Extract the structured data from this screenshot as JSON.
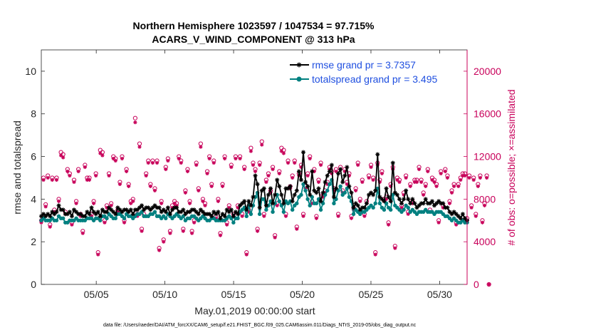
{
  "chart_data": {
    "type": "line",
    "title": "Northern Hemisphere 1023597 / 1047534 = 97.715%",
    "subtitle": "ACARS_V_WIND_COMPONENT @ 313 hPa",
    "xlabel": "May.01,2019 00:00:00 start",
    "ylabel": "rmse and totalspread",
    "ylabel_right": "# of obs: o=possible; ×=assimilated",
    "footnote": "data file: /Users/raeder/DAI/ATM_forcXX/CAM6_setup/f.e21.FHIST_BGC.f09_025.CAM6assim.011/Diags_NTrS_2019-05/obs_diag_output.nc",
    "xlim": [
      1,
      32
    ],
    "ylim": [
      0,
      11
    ],
    "ylim_right": [
      0,
      22000
    ],
    "x_ticks": [
      5,
      10,
      15,
      20,
      25,
      30
    ],
    "x_tick_labels": [
      "05/05",
      "05/10",
      "05/15",
      "05/20",
      "05/25",
      "05/30"
    ],
    "y_ticks": [
      0,
      2,
      4,
      6,
      8,
      10
    ],
    "y_tick_labels": [
      "0",
      "2",
      "4",
      "6",
      "8",
      "10"
    ],
    "y_right_ticks": [
      0,
      4000,
      8000,
      12000,
      16000,
      20000
    ],
    "y_right_tick_labels": [
      "0",
      "4000",
      "8000",
      "12000",
      "16000",
      "20000"
    ],
    "legend_position": "top-right",
    "colors": {
      "rmse": "#000000",
      "spread": "#008080",
      "obs": "#c8005a"
    },
    "series": [
      {
        "name": "rmse grand pr = 3.7357",
        "values": [
          3.2,
          3.3,
          3.2,
          3.3,
          3.2,
          3.4,
          3.3,
          3.4,
          3.7,
          3.5,
          3.5,
          3.3,
          3.3,
          3.4,
          3.2,
          3.5,
          3.4,
          3.3,
          3.3,
          3.2,
          3.2,
          3.4,
          3.3,
          3.6,
          3.4,
          3.3,
          3.4,
          3.2,
          3.5,
          3.4,
          3.4,
          3.6,
          3.5,
          3.4,
          3.3,
          3.6,
          3.5,
          3.4,
          3.5,
          3.5,
          3.4,
          3.5,
          3.3,
          3.5,
          3.5,
          3.6,
          3.7,
          3.5,
          3.6,
          3.6,
          3.5,
          3.6,
          3.7,
          3.6,
          3.6,
          3.4,
          3.5,
          3.4,
          3.6,
          3.3,
          3.5,
          3.6,
          3.6,
          3.4,
          3.4,
          3.5,
          3.3,
          3.4,
          3.4,
          3.5,
          3.5,
          3.4,
          3.3,
          3.5,
          3.4,
          3.3,
          3.3,
          3.3,
          3.2,
          3.4,
          3.3,
          3.4,
          3.1,
          3.3,
          3.2,
          3.5,
          3.4,
          3.5,
          3.2,
          3.4,
          3.3,
          3.7,
          3.8,
          3.9,
          3.5,
          3.9,
          3.7,
          4.1,
          5.1,
          4.7,
          3.6,
          4.4,
          4.5,
          3.7,
          4.2,
          4.5,
          3.8,
          4.2,
          4.9,
          4.6,
          4.2,
          3.8,
          4.5,
          4.5,
          4.6,
          3.9,
          4.2,
          4.4,
          5.3,
          4.9,
          6.2,
          4.8,
          4.6,
          4.2,
          5.3,
          4.4,
          4.3,
          4.5,
          3.9,
          4.3,
          4.8,
          5.1,
          5.3,
          5.6,
          4.1,
          4.5,
          5.2,
          5.4,
          4.8,
          5.1,
          5.5,
          4.6,
          4.3,
          3.6,
          3.8,
          3.7,
          3.5,
          3.6,
          3.6,
          3.8,
          4.2,
          4.3,
          4.2,
          4.4,
          6.1,
          4.1,
          4.0,
          3.9,
          4.5,
          4.1,
          3.9,
          5.7,
          4.3,
          4.2,
          4.0,
          3.8,
          4.0,
          4.4,
          4.0,
          3.8,
          4.0,
          3.8,
          3.6,
          3.7,
          3.8,
          3.8,
          4.0,
          3.8,
          3.8,
          3.9,
          3.7,
          3.8,
          3.9,
          3.8,
          3.8,
          3.6,
          3.6,
          3.4,
          3.3,
          3.4,
          3.3,
          3.2,
          3.1,
          3.3,
          3.1,
          3.0
        ]
      },
      {
        "name": "totalspread grand pr = 3.495",
        "values": [
          3.0,
          3.1,
          3.0,
          3.0,
          3.0,
          3.1,
          3.0,
          3.0,
          3.2,
          3.1,
          3.1,
          2.9,
          2.9,
          3.0,
          3.0,
          3.0,
          3.1,
          3.0,
          3.0,
          3.0,
          3.0,
          3.1,
          3.1,
          3.1,
          3.0,
          3.1,
          3.1,
          3.0,
          3.2,
          3.2,
          3.1,
          3.3,
          3.2,
          3.1,
          3.1,
          3.3,
          3.3,
          3.2,
          3.1,
          3.3,
          3.2,
          3.2,
          3.1,
          3.2,
          3.3,
          3.3,
          3.4,
          3.2,
          3.2,
          3.2,
          3.3,
          3.3,
          3.4,
          3.2,
          3.2,
          3.1,
          3.2,
          3.1,
          3.3,
          3.2,
          3.1,
          3.2,
          3.3,
          3.2,
          3.1,
          3.2,
          3.0,
          3.1,
          3.1,
          3.2,
          3.2,
          3.1,
          3.0,
          3.1,
          3.2,
          3.1,
          3.0,
          3.0,
          3.1,
          3.1,
          3.0,
          3.0,
          3.0,
          3.0,
          3.0,
          3.1,
          3.2,
          3.1,
          2.9,
          3.1,
          3.1,
          3.4,
          3.5,
          3.6,
          3.2,
          3.7,
          3.3,
          3.7,
          4.1,
          4.3,
          3.3,
          4.0,
          4.0,
          3.5,
          3.7,
          3.9,
          3.4,
          3.8,
          4.2,
          3.9,
          3.7,
          3.4,
          3.9,
          3.8,
          3.9,
          3.5,
          3.7,
          3.8,
          4.1,
          4.2,
          4.7,
          4.4,
          4.0,
          3.7,
          4.1,
          3.8,
          3.8,
          4.0,
          3.5,
          3.8,
          4.2,
          4.4,
          4.7,
          4.9,
          3.8,
          4.0,
          4.4,
          4.6,
          4.2,
          4.3,
          4.5,
          4.1,
          3.9,
          3.3,
          3.5,
          3.4,
          3.3,
          3.4,
          3.4,
          3.5,
          3.6,
          3.7,
          3.6,
          3.8,
          4.5,
          3.8,
          3.6,
          3.5,
          3.8,
          3.6,
          3.5,
          4.2,
          3.7,
          3.6,
          3.5,
          3.4,
          3.5,
          3.7,
          3.6,
          3.4,
          3.5,
          3.4,
          3.3,
          3.4,
          3.4,
          3.4,
          3.5,
          3.4,
          3.4,
          3.4,
          3.3,
          3.4,
          3.4,
          3.4,
          3.3,
          3.2,
          3.2,
          3.1,
          3.0,
          3.1,
          3.0,
          2.9,
          2.9,
          3.0,
          2.9,
          2.9
        ]
      },
      {
        "name": "# of obs possible (o)",
        "axis": "right",
        "values": [
          6000,
          10000,
          7500,
          10200,
          5600,
          10000,
          7000,
          10000,
          8000,
          12400,
          12200,
          6800,
          10800,
          10400,
          5800,
          9800,
          7800,
          10800,
          6600,
          5000,
          11200,
          10000,
          10000,
          6600,
          7800,
          10400,
          3000,
          12600,
          12400,
          6000,
          7400,
          10400,
          7600,
          12000,
          11800,
          7000,
          9600,
          12000,
          6000,
          10800,
          9400,
          7800,
          8000,
          15600,
          6600,
          13200,
          5200,
          6600,
          10400,
          11600,
          9400,
          11600,
          9000,
          11600,
          3400,
          7800,
          4200,
          11000,
          11800,
          5000,
          7400,
          7800,
          7600,
          12000,
          11600,
          5200,
          8800,
          10800,
          7800,
          5000,
          6000,
          11400,
          9000,
          13200,
          8000,
          7600,
          10600,
          12000,
          9400,
          11600,
          6400,
          8000,
          4800,
          9400,
          12000,
          5800,
          7400,
          11200,
          6600,
          12000,
          7400,
          12000,
          6600,
          11000,
          3000,
          7000,
          12800,
          11400,
          10800,
          5200,
          11400,
          13400,
          6600,
          9800,
          10400,
          8800,
          11000,
          4600,
          7600,
          10600,
          12800,
          12600,
          6600,
          11600,
          9200,
          10200,
          11600,
          5400,
          10400,
          11200,
          6600,
          9200,
          10400,
          12000,
          7800,
          10800,
          6400,
          9800,
          11400,
          8400,
          8800,
          9600,
          11000,
          10600,
          9000,
          10800,
          6600,
          11000,
          8800,
          10800,
          9600,
          10400,
          6400,
          7200,
          9000,
          11400,
          8000,
          9800,
          6600,
          7800,
          10200,
          11200,
          10000,
          3000,
          11400,
          9800,
          10600,
          8000,
          8200,
          5800,
          9400,
          11000,
          3600,
          10000,
          9800,
          7400,
          8600,
          10200,
          6800,
          9400,
          7800,
          9800,
          9800,
          11000,
          9800,
          8600,
          9400,
          10800,
          7000,
          10000,
          9800,
          9400,
          6000,
          10600,
          7400,
          10800,
          10200,
          7800,
          8800,
          9400,
          5800,
          9400,
          10000,
          10400,
          10400,
          6200,
          10200,
          7400,
          10000,
          6600,
          9400,
          10200,
          6000,
          7600,
          10200,
          0
        ]
      },
      {
        "name": "# of obs assimilated (×)",
        "axis": "right",
        "values": [
          5800,
          9800,
          7300,
          10000,
          5400,
          9800,
          6800,
          9800,
          7800,
          12100,
          11900,
          6600,
          10600,
          10200,
          5600,
          9600,
          7600,
          10600,
          6400,
          4800,
          11000,
          9800,
          9800,
          6400,
          7600,
          10200,
          2800,
          12300,
          12100,
          5800,
          7200,
          10200,
          7400,
          11800,
          11600,
          6800,
          9400,
          11800,
          5800,
          10600,
          9200,
          7600,
          7800,
          15200,
          6400,
          12900,
          5000,
          6400,
          10200,
          11400,
          9200,
          11400,
          8800,
          11400,
          3200,
          7600,
          4000,
          10800,
          11600,
          4800,
          7200,
          7600,
          7400,
          11800,
          11400,
          5000,
          8600,
          10600,
          7600,
          4800,
          5800,
          11200,
          8800,
          12900,
          7800,
          7400,
          10400,
          11800,
          9200,
          11400,
          6200,
          7800,
          4600,
          9200,
          11800,
          5600,
          7200,
          11000,
          6400,
          11800,
          7200,
          11800,
          6400,
          10800,
          2800,
          6800,
          12500,
          11200,
          10600,
          5000,
          11200,
          13100,
          6400,
          9600,
          10200,
          8600,
          10800,
          4400,
          7400,
          10400,
          12500,
          12300,
          6400,
          11400,
          9000,
          10000,
          11400,
          5200,
          10200,
          11000,
          6400,
          9000,
          10200,
          11800,
          7600,
          10600,
          6200,
          9600,
          11200,
          8200,
          8600,
          9400,
          10800,
          10400,
          8800,
          10600,
          6400,
          10800,
          8600,
          10600,
          9400,
          10200,
          6200,
          7000,
          8800,
          11200,
          7800,
          9600,
          6400,
          7600,
          10000,
          11000,
          9800,
          2800,
          11200,
          9600,
          10400,
          7800,
          8000,
          5600,
          9200,
          10800,
          3400,
          9800,
          9600,
          7200,
          8400,
          10000,
          6600,
          9200,
          7600,
          9600,
          9600,
          10800,
          9600,
          8400,
          9200,
          10600,
          6800,
          9800,
          9600,
          9200,
          5800,
          10400,
          7200,
          10600,
          10000,
          7600,
          8600,
          9200,
          5600,
          9200,
          9800,
          10200,
          10200,
          6000,
          10000,
          7200,
          9800,
          6400,
          9200,
          10000,
          5800,
          7400,
          10000,
          0
        ]
      }
    ]
  }
}
